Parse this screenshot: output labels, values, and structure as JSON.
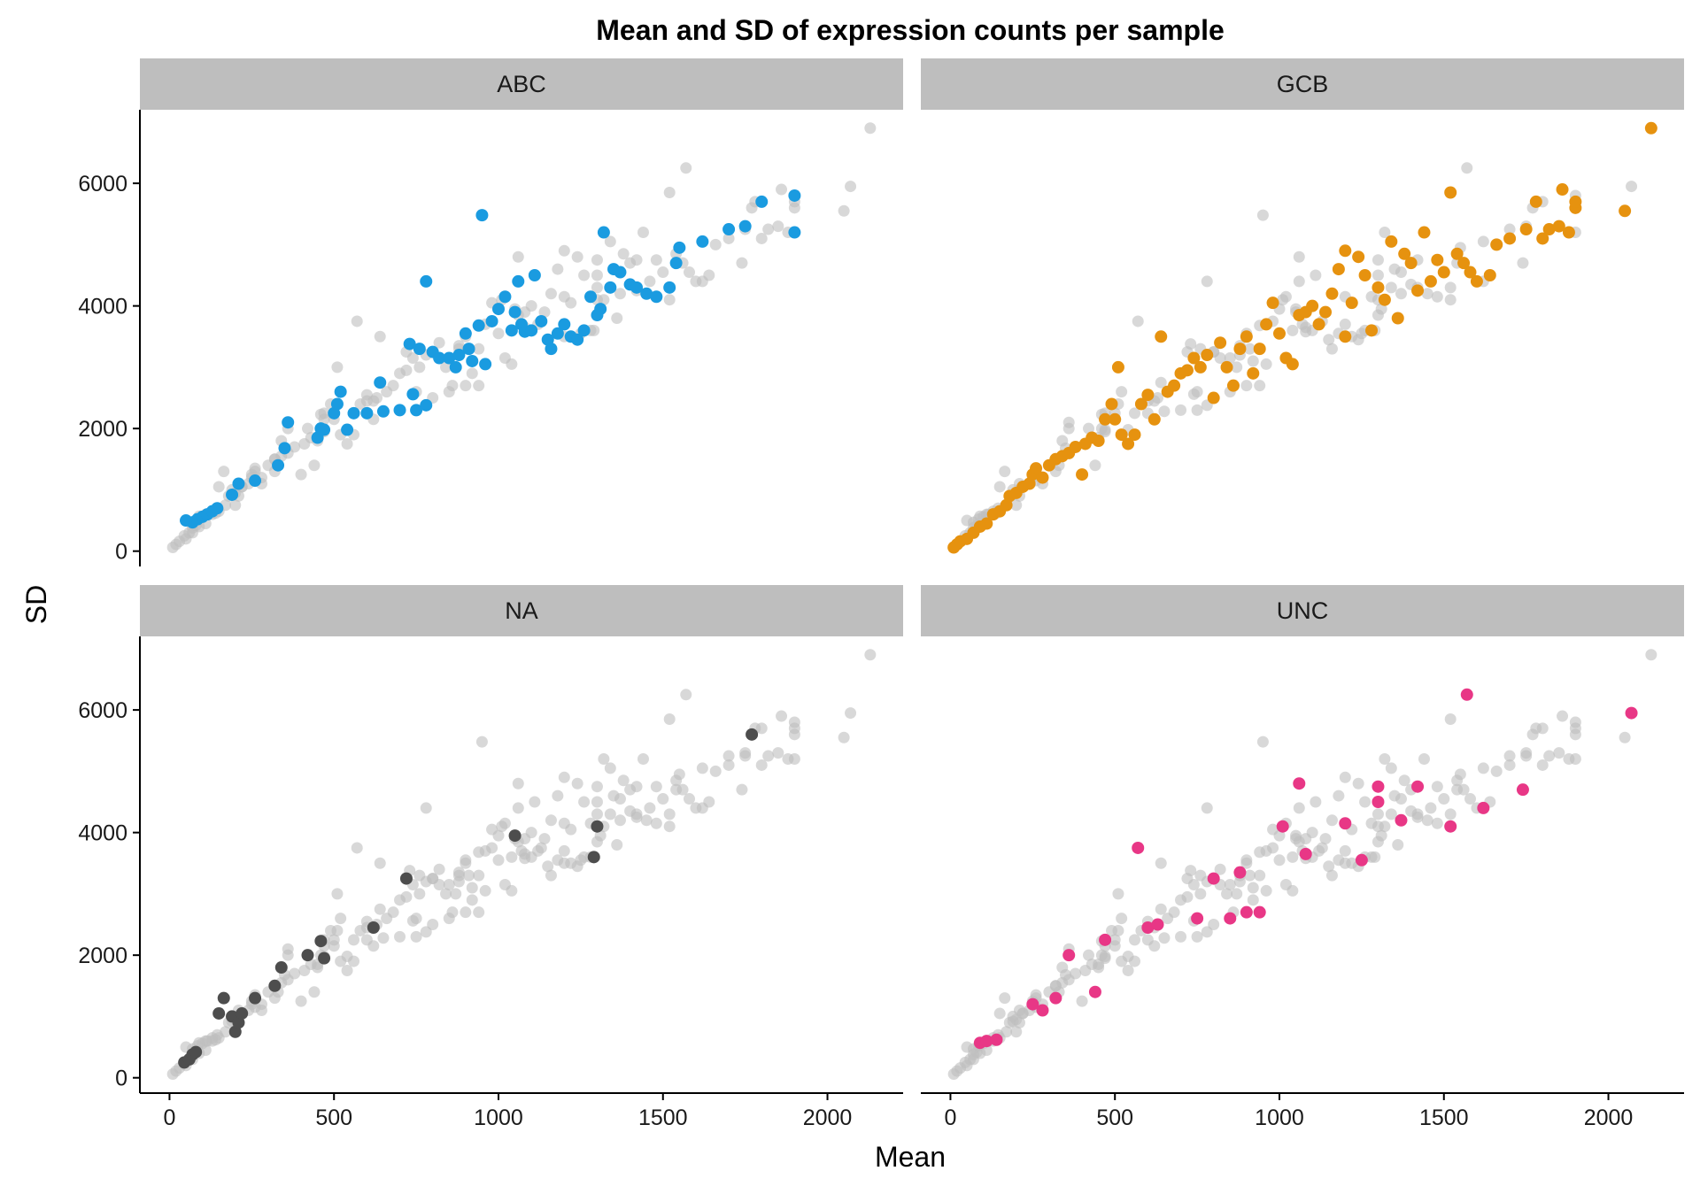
{
  "chart_data": {
    "type": "scatter",
    "title": "Mean and SD of expression counts per sample",
    "xlabel": "Mean",
    "ylabel": "SD",
    "xlim": [
      -90,
      2230
    ],
    "ylim": [
      -250,
      7200
    ],
    "xticks": [
      0,
      500,
      1000,
      1500,
      2000
    ],
    "yticks": [
      0,
      2000,
      4000,
      6000
    ],
    "facet_layout": "2x2",
    "grid": false,
    "legend": "none",
    "background_color": "#bebebe",
    "background_alpha": 0.6,
    "panels": [
      {
        "name": "ABC",
        "color": "#1a9be0",
        "points": [
          [
            50,
            500
          ],
          [
            70,
            470
          ],
          [
            85,
            520
          ],
          [
            100,
            560
          ],
          [
            115,
            600
          ],
          [
            130,
            650
          ],
          [
            145,
            700
          ],
          [
            190,
            920
          ],
          [
            210,
            1100
          ],
          [
            260,
            1150
          ],
          [
            330,
            1400
          ],
          [
            350,
            1680
          ],
          [
            360,
            2100
          ],
          [
            450,
            1850
          ],
          [
            460,
            2000
          ],
          [
            470,
            1980
          ],
          [
            500,
            2250
          ],
          [
            510,
            2400
          ],
          [
            520,
            2600
          ],
          [
            540,
            1980
          ],
          [
            560,
            2250
          ],
          [
            600,
            2250
          ],
          [
            640,
            2750
          ],
          [
            650,
            2280
          ],
          [
            700,
            2300
          ],
          [
            730,
            3380
          ],
          [
            740,
            2560
          ],
          [
            750,
            2300
          ],
          [
            760,
            3300
          ],
          [
            780,
            2380
          ],
          [
            780,
            4400
          ],
          [
            800,
            3250
          ],
          [
            820,
            3150
          ],
          [
            850,
            3150
          ],
          [
            870,
            3000
          ],
          [
            880,
            3200
          ],
          [
            900,
            3550
          ],
          [
            910,
            3300
          ],
          [
            920,
            3100
          ],
          [
            940,
            3680
          ],
          [
            950,
            5480
          ],
          [
            960,
            3050
          ],
          [
            1000,
            3950
          ],
          [
            1020,
            4150
          ],
          [
            1040,
            3600
          ],
          [
            1050,
            3900
          ],
          [
            1060,
            4400
          ],
          [
            1070,
            3700
          ],
          [
            1080,
            3580
          ],
          [
            1100,
            3600
          ],
          [
            1110,
            4500
          ],
          [
            1130,
            3750
          ],
          [
            1150,
            3450
          ],
          [
            1180,
            3550
          ],
          [
            1200,
            3700
          ],
          [
            1220,
            3500
          ],
          [
            1240,
            3450
          ],
          [
            1260,
            3600
          ],
          [
            1280,
            4150
          ],
          [
            1300,
            3850
          ],
          [
            1320,
            5200
          ],
          [
            1350,
            4600
          ],
          [
            1370,
            4550
          ],
          [
            1400,
            4350
          ],
          [
            1420,
            4300
          ],
          [
            1450,
            4200
          ],
          [
            1480,
            4150
          ],
          [
            1520,
            4300
          ],
          [
            1540,
            4700
          ],
          [
            1550,
            4950
          ],
          [
            1620,
            5050
          ],
          [
            1700,
            5250
          ],
          [
            1750,
            5300
          ],
          [
            1800,
            5700
          ],
          [
            1900,
            5800
          ],
          [
            1900,
            5200
          ],
          [
            1340,
            4300
          ],
          [
            1310,
            3950
          ],
          [
            1160,
            3300
          ],
          [
            980,
            3750
          ]
        ]
      },
      {
        "name": "GCB",
        "color": "#e6920f",
        "points": [
          [
            10,
            60
          ],
          [
            20,
            110
          ],
          [
            30,
            160
          ],
          [
            50,
            200
          ],
          [
            70,
            300
          ],
          [
            90,
            400
          ],
          [
            110,
            450
          ],
          [
            130,
            600
          ],
          [
            150,
            650
          ],
          [
            170,
            750
          ],
          [
            180,
            900
          ],
          [
            200,
            950
          ],
          [
            220,
            1050
          ],
          [
            240,
            1100
          ],
          [
            250,
            1250
          ],
          [
            260,
            1350
          ],
          [
            280,
            1200
          ],
          [
            300,
            1400
          ],
          [
            320,
            1500
          ],
          [
            340,
            1550
          ],
          [
            360,
            1600
          ],
          [
            380,
            1700
          ],
          [
            400,
            1250
          ],
          [
            410,
            1750
          ],
          [
            430,
            1850
          ],
          [
            450,
            1800
          ],
          [
            470,
            2150
          ],
          [
            490,
            2400
          ],
          [
            500,
            2150
          ],
          [
            510,
            3000
          ],
          [
            520,
            1900
          ],
          [
            540,
            1750
          ],
          [
            560,
            1900
          ],
          [
            580,
            2400
          ],
          [
            600,
            2550
          ],
          [
            620,
            2150
          ],
          [
            640,
            3500
          ],
          [
            660,
            2600
          ],
          [
            680,
            2700
          ],
          [
            700,
            2900
          ],
          [
            720,
            2950
          ],
          [
            740,
            3150
          ],
          [
            760,
            3000
          ],
          [
            780,
            3200
          ],
          [
            800,
            2500
          ],
          [
            820,
            3400
          ],
          [
            840,
            3000
          ],
          [
            860,
            2700
          ],
          [
            880,
            3300
          ],
          [
            900,
            3500
          ],
          [
            920,
            2900
          ],
          [
            940,
            3300
          ],
          [
            960,
            3700
          ],
          [
            980,
            4050
          ],
          [
            1000,
            3550
          ],
          [
            1020,
            3150
          ],
          [
            1040,
            3050
          ],
          [
            1060,
            3850
          ],
          [
            1080,
            3900
          ],
          [
            1100,
            4000
          ],
          [
            1120,
            3700
          ],
          [
            1140,
            3900
          ],
          [
            1160,
            4200
          ],
          [
            1180,
            4600
          ],
          [
            1200,
            4900
          ],
          [
            1220,
            4050
          ],
          [
            1240,
            4800
          ],
          [
            1260,
            4500
          ],
          [
            1280,
            3600
          ],
          [
            1300,
            4300
          ],
          [
            1320,
            4100
          ],
          [
            1340,
            5050
          ],
          [
            1360,
            3800
          ],
          [
            1380,
            4850
          ],
          [
            1400,
            4700
          ],
          [
            1420,
            4250
          ],
          [
            1440,
            5200
          ],
          [
            1460,
            4400
          ],
          [
            1480,
            4750
          ],
          [
            1500,
            4550
          ],
          [
            1520,
            5850
          ],
          [
            1540,
            4850
          ],
          [
            1560,
            4700
          ],
          [
            1580,
            4550
          ],
          [
            1600,
            4400
          ],
          [
            1640,
            4500
          ],
          [
            1660,
            5000
          ],
          [
            1700,
            5100
          ],
          [
            1750,
            5250
          ],
          [
            1780,
            5700
          ],
          [
            1800,
            5100
          ],
          [
            1820,
            5250
          ],
          [
            1850,
            5300
          ],
          [
            1860,
            5900
          ],
          [
            1880,
            5200
          ],
          [
            1900,
            5600
          ],
          [
            1900,
            5700
          ],
          [
            2050,
            5550
          ],
          [
            2130,
            6900
          ],
          [
            1200,
            3500
          ]
        ]
      },
      {
        "name": "NA",
        "color": "#4d4d4d",
        "points": [
          [
            45,
            250
          ],
          [
            60,
            300
          ],
          [
            70,
            380
          ],
          [
            80,
            420
          ],
          [
            150,
            1050
          ],
          [
            165,
            1300
          ],
          [
            190,
            1000
          ],
          [
            200,
            750
          ],
          [
            210,
            900
          ],
          [
            220,
            1050
          ],
          [
            260,
            1300
          ],
          [
            320,
            1500
          ],
          [
            340,
            1800
          ],
          [
            420,
            2000
          ],
          [
            460,
            2230
          ],
          [
            470,
            1950
          ],
          [
            620,
            2450
          ],
          [
            720,
            3250
          ],
          [
            1050,
            3950
          ],
          [
            1290,
            3600
          ],
          [
            1300,
            4100
          ],
          [
            1770,
            5600
          ]
        ]
      },
      {
        "name": "UNC",
        "color": "#e83786",
        "points": [
          [
            90,
            570
          ],
          [
            110,
            600
          ],
          [
            140,
            620
          ],
          [
            250,
            1200
          ],
          [
            280,
            1100
          ],
          [
            320,
            1300
          ],
          [
            360,
            2000
          ],
          [
            440,
            1400
          ],
          [
            470,
            2250
          ],
          [
            570,
            3750
          ],
          [
            600,
            2450
          ],
          [
            630,
            2500
          ],
          [
            750,
            2600
          ],
          [
            800,
            3250
          ],
          [
            850,
            2600
          ],
          [
            880,
            3350
          ],
          [
            900,
            2700
          ],
          [
            940,
            2700
          ],
          [
            1010,
            4100
          ],
          [
            1060,
            4800
          ],
          [
            1080,
            3650
          ],
          [
            1200,
            4150
          ],
          [
            1250,
            3550
          ],
          [
            1300,
            4750
          ],
          [
            1300,
            4500
          ],
          [
            1370,
            4200
          ],
          [
            1420,
            4750
          ],
          [
            1520,
            4100
          ],
          [
            1570,
            6250
          ],
          [
            1620,
            4400
          ],
          [
            1740,
            4700
          ],
          [
            2070,
            5950
          ]
        ]
      }
    ]
  }
}
